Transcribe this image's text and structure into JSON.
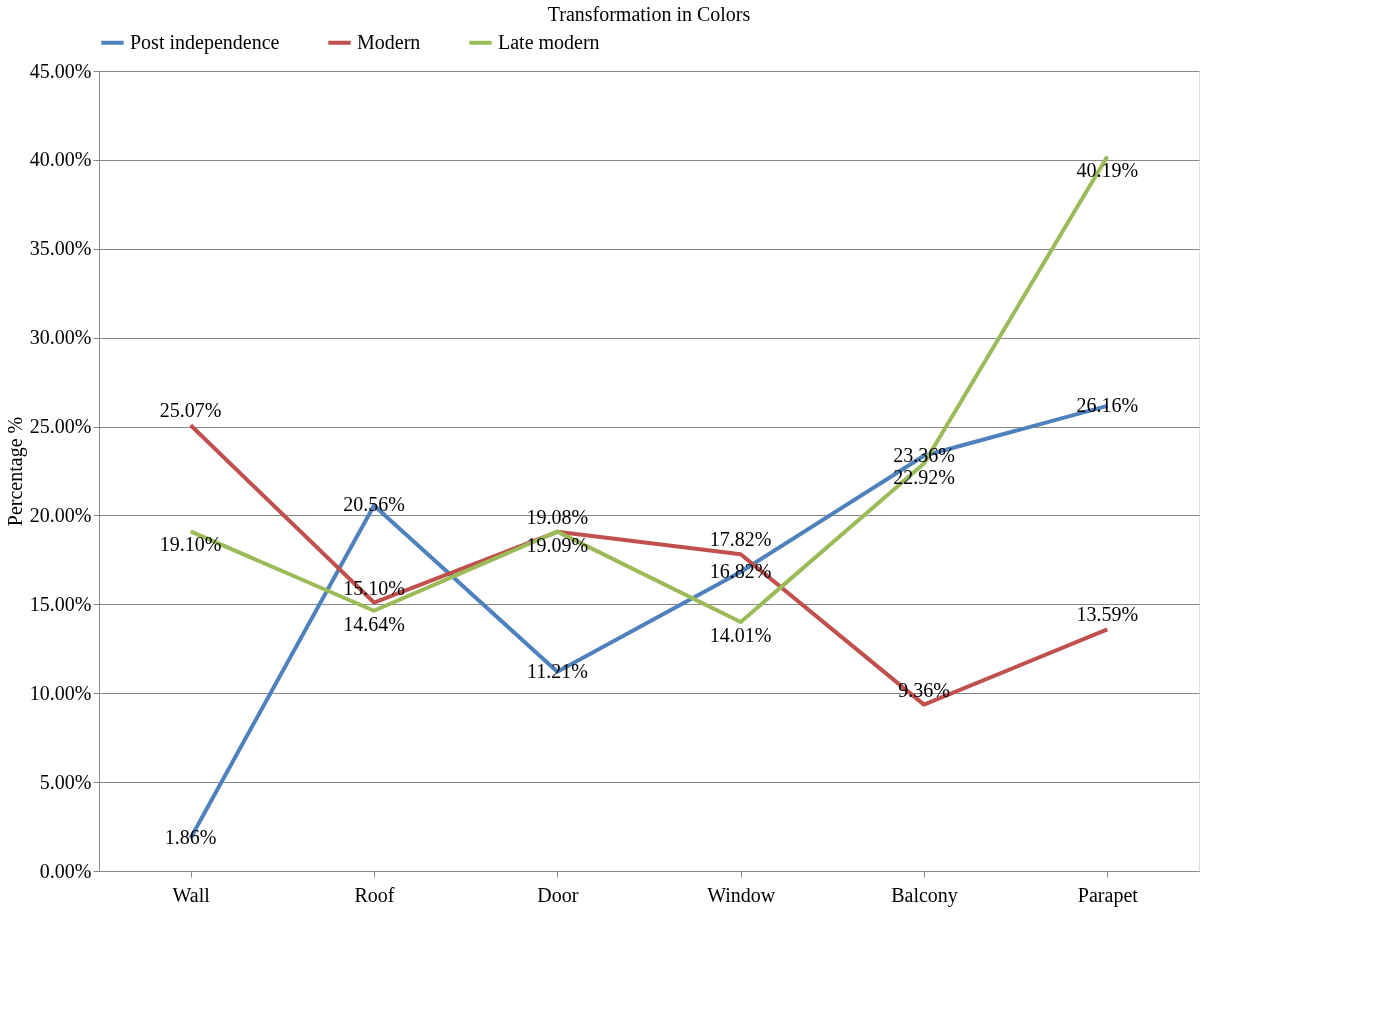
{
  "chart_data": {
    "type": "line",
    "title": "Transformation in Colors",
    "ylabel": "Percentage %",
    "categories": [
      "Wall",
      "Roof",
      "Door",
      "Window",
      "Balcony",
      "Parapet"
    ],
    "series": [
      {
        "name": "Post independence",
        "color": "#4f81bd",
        "values": [
          1.86,
          20.56,
          11.21,
          16.82,
          23.36,
          26.16
        ],
        "value_labels": [
          "1.86%",
          "20.56%",
          "11.21%",
          "16.82%",
          "23.36%",
          "26.16%"
        ]
      },
      {
        "name": "Modern",
        "color": "#c0504d",
        "values": [
          25.07,
          15.1,
          19.08,
          17.82,
          9.36,
          13.59
        ],
        "value_labels": [
          "25.07%",
          "15.10%",
          "19.08%",
          "17.82%",
          "9.36%",
          "13.59%"
        ]
      },
      {
        "name": "Late modern",
        "color": "#9bbb59",
        "values": [
          19.1,
          14.64,
          19.09,
          14.01,
          22.92,
          40.19
        ],
        "value_labels": [
          "19.10%",
          "14.64%",
          "19.09%",
          "14.01%",
          "22.92%",
          "40.19%"
        ]
      }
    ],
    "ylim": [
      0,
      45
    ],
    "yticks": [
      {
        "value": 0,
        "label": "0.00%"
      },
      {
        "value": 5,
        "label": "5.00%"
      },
      {
        "value": 10,
        "label": "10.00%"
      },
      {
        "value": 15,
        "label": "15.00%"
      },
      {
        "value": 20,
        "label": "20.00%"
      },
      {
        "value": 25,
        "label": "25.00%"
      },
      {
        "value": 30,
        "label": "30.00%"
      },
      {
        "value": 35,
        "label": "35.00%"
      },
      {
        "value": 40,
        "label": "40.00%"
      },
      {
        "value": 45,
        "label": "45.00%"
      }
    ],
    "grid": "y",
    "legend": "top",
    "marker": "none",
    "line_style": "solid"
  }
}
